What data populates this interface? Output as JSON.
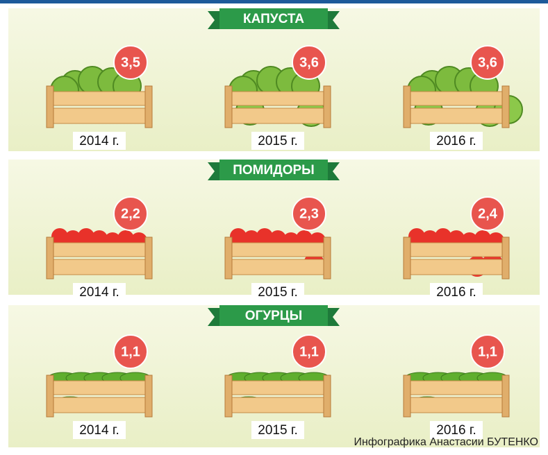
{
  "sections": [
    {
      "title": "КАПУСТА",
      "kind": "cabbage",
      "items": [
        {
          "year": "2014 г.",
          "value": "3,5"
        },
        {
          "year": "2015 г.",
          "value": "3,6"
        },
        {
          "year": "2016 г.",
          "value": "3,6"
        }
      ]
    },
    {
      "title": "ПОМИДОРЫ",
      "kind": "tomato",
      "items": [
        {
          "year": "2014 г.",
          "value": "2,2"
        },
        {
          "year": "2015 г.",
          "value": "2,3"
        },
        {
          "year": "2016 г.",
          "value": "2,4"
        }
      ]
    },
    {
      "title": "ОГУРЦЫ",
      "kind": "cucumber",
      "items": [
        {
          "year": "2014 г.",
          "value": "1,1"
        },
        {
          "year": "2015 г.",
          "value": "1,1"
        },
        {
          "year": "2016 г.",
          "value": "1,1"
        }
      ]
    }
  ],
  "credit": "Инфографика Анастасии БУТЕНКО"
}
